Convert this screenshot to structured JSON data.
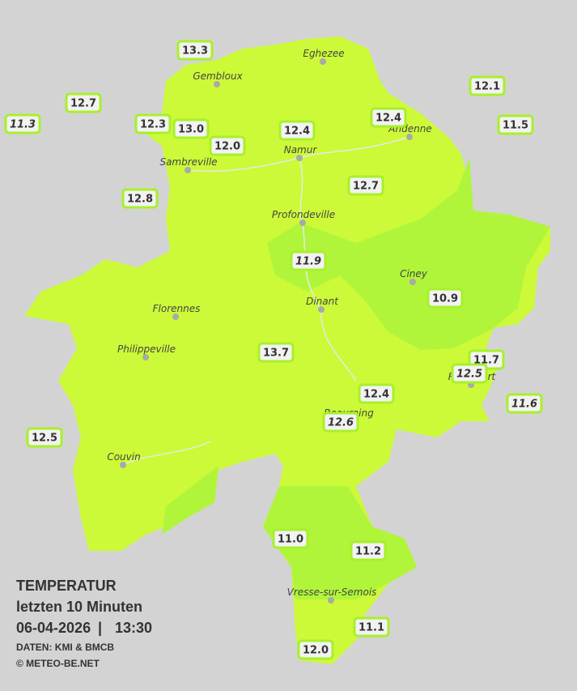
{
  "cities": [
    {
      "name": "Eghezee"
    },
    {
      "name": "Gembloux"
    },
    {
      "name": "Andenne"
    },
    {
      "name": "Namur"
    },
    {
      "name": "Sambreville"
    },
    {
      "name": "Profondeville"
    },
    {
      "name": "Ciney"
    },
    {
      "name": "Dinant"
    },
    {
      "name": "Florennes"
    },
    {
      "name": "Philippeville"
    },
    {
      "name": "Rochefort"
    },
    {
      "name": "Beauraing"
    },
    {
      "name": "Couvin"
    },
    {
      "name": "Vresse-sur-Semois"
    }
  ],
  "stations": [
    {
      "label": "13.3",
      "italic": false
    },
    {
      "label": "12.7",
      "italic": false
    },
    {
      "label": "11.3",
      "italic": true
    },
    {
      "label": "12.3",
      "italic": false
    },
    {
      "label": "13.0",
      "italic": false
    },
    {
      "label": "12.0",
      "italic": false
    },
    {
      "label": "12.4",
      "italic": false
    },
    {
      "label": "12.4",
      "italic": false
    },
    {
      "label": "12.1",
      "italic": false
    },
    {
      "label": "11.5",
      "italic": false
    },
    {
      "label": "12.8",
      "italic": false
    },
    {
      "label": "12.7",
      "italic": false
    },
    {
      "label": "11.9",
      "italic": true
    },
    {
      "label": "10.9",
      "italic": false
    },
    {
      "label": "13.7",
      "italic": false
    },
    {
      "label": "11.7",
      "italic": false
    },
    {
      "label": "12.5",
      "italic": true
    },
    {
      "label": "11.6",
      "italic": true
    },
    {
      "label": "12.4",
      "italic": false
    },
    {
      "label": "12.6",
      "italic": true
    },
    {
      "label": "12.5",
      "italic": false
    },
    {
      "label": "11.0",
      "italic": false
    },
    {
      "label": "11.2",
      "italic": false
    },
    {
      "label": "11.1",
      "italic": false
    },
    {
      "label": "12.0",
      "italic": false
    }
  ],
  "legend": {
    "title": "TEMPERATUR",
    "period": "letzten 10 Minuten",
    "date": "06-04-2026",
    "separator": "|",
    "time": "13:30",
    "source": "DATEN: KMI & BMCB",
    "copyright": "© METEO-BE.NET"
  }
}
